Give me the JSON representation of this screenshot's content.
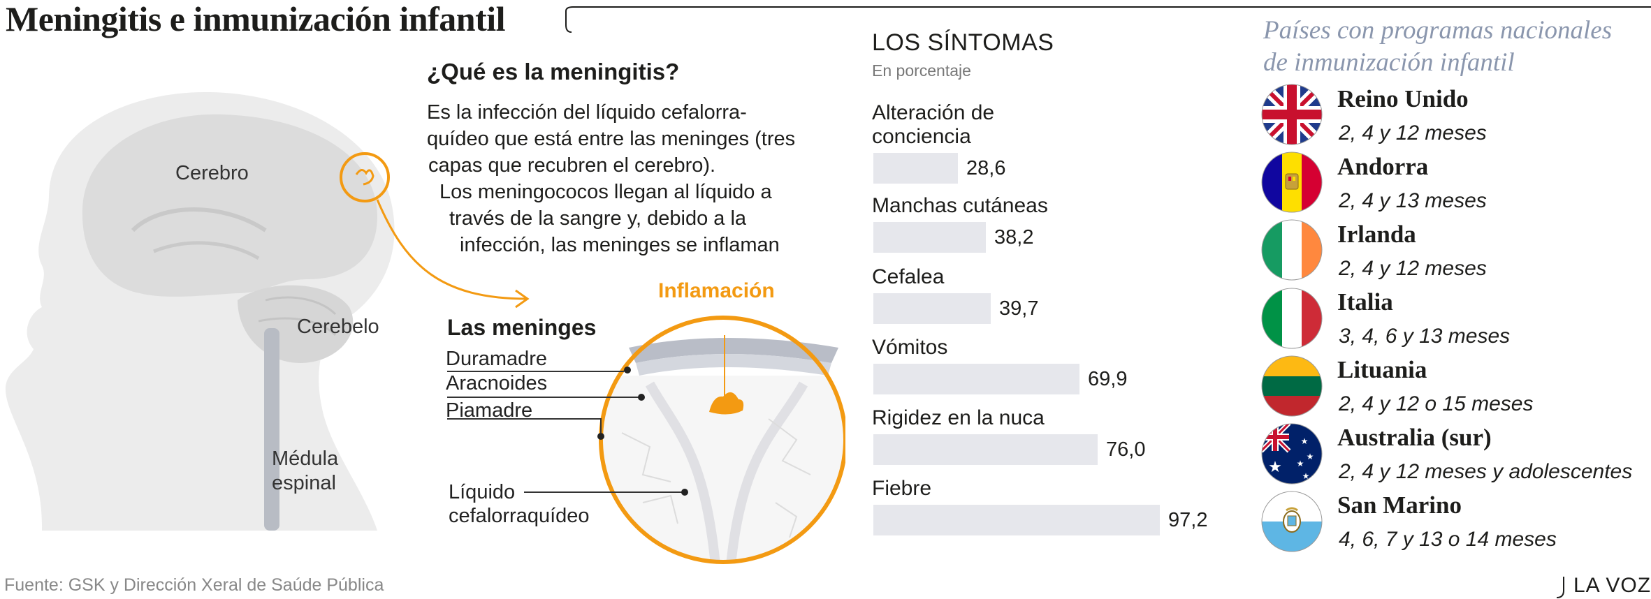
{
  "header": {
    "title": "Meningitis e inmunización infantil"
  },
  "head_diagram": {
    "labels": {
      "cerebro": "Cerebro",
      "cerebelo": "Cerebelo",
      "medula_1": "Médula",
      "medula_2": "espinal"
    }
  },
  "what_is": {
    "title": "¿Qué es la meningitis?",
    "lines": [
      "Es la infección del líquido cefalorra-",
      "quídeo que está entre las meninges (tres",
      "capas que recubren el cerebro).",
      "Los meningococos llegan al líquido a",
      "través de la sangre y, debido a la",
      "infección, las meninges se inflaman"
    ]
  },
  "meninges": {
    "title": "Las meninges",
    "inflammation": "Inflamación",
    "layers": [
      "Duramadre",
      "Aracnoides",
      "Piamadre"
    ],
    "fluid_1": "Líquido",
    "fluid_2": "cefalorraquídeo"
  },
  "chart_data": {
    "type": "bar",
    "title": "LOS SÍNTOMAS",
    "subtitle": "En porcentaje",
    "categories": [
      "Alteración de conciencia",
      "Manchas cutáneas",
      "Cefalea",
      "Vómitos",
      "Rigidez en la nuca",
      "Fiebre"
    ],
    "category_lines": [
      [
        "Alteración de",
        "conciencia"
      ],
      [
        "Manchas cutáneas"
      ],
      [
        "Cefalea"
      ],
      [
        "Vómitos"
      ],
      [
        "Rigidez en la nuca"
      ],
      [
        "Fiebre"
      ]
    ],
    "values": [
      28.6,
      38.2,
      39.7,
      69.9,
      76.0,
      97.2
    ],
    "value_labels": [
      "28,6",
      "38,2",
      "39,7",
      "69,9",
      "76,0",
      "97,2"
    ],
    "xlim": [
      0,
      100
    ],
    "bar_color": "#e6e7ec"
  },
  "countries": {
    "title_1": "Países con programas nacionales",
    "title_2": "de inmunización infantil",
    "items": [
      {
        "name": "Reino Unido",
        "schedule": "2, 4 y 12 meses",
        "flag": "uk-flag-icon"
      },
      {
        "name": "Andorra",
        "schedule": "2, 4 y 13 meses",
        "flag": "andorra-flag-icon"
      },
      {
        "name": "Irlanda",
        "schedule": "2, 4 y 12 meses",
        "flag": "ireland-flag-icon"
      },
      {
        "name": "Italia",
        "schedule": "3, 4, 6 y 13 meses",
        "flag": "italy-flag-icon"
      },
      {
        "name": "Lituania",
        "schedule": "2, 4 y 12 o 15 meses",
        "flag": "lithuania-flag-icon"
      },
      {
        "name": "Australia (sur)",
        "schedule": "2, 4 y 12 meses y adolescentes",
        "flag": "australia-flag-icon"
      },
      {
        "name": "San Marino",
        "schedule": "4, 6, 7 y 13 o 14 meses",
        "flag": "san-marino-flag-icon"
      }
    ]
  },
  "footer": {
    "source": "Fuente: GSK y Dirección Xeral de Saúde Pública",
    "brand": "LA VOZ"
  },
  "colors": {
    "accent": "#f39a12",
    "title_blue": "#8a96ad",
    "bar": "#e6e7ec",
    "anatomy": "#e8e8e8"
  }
}
